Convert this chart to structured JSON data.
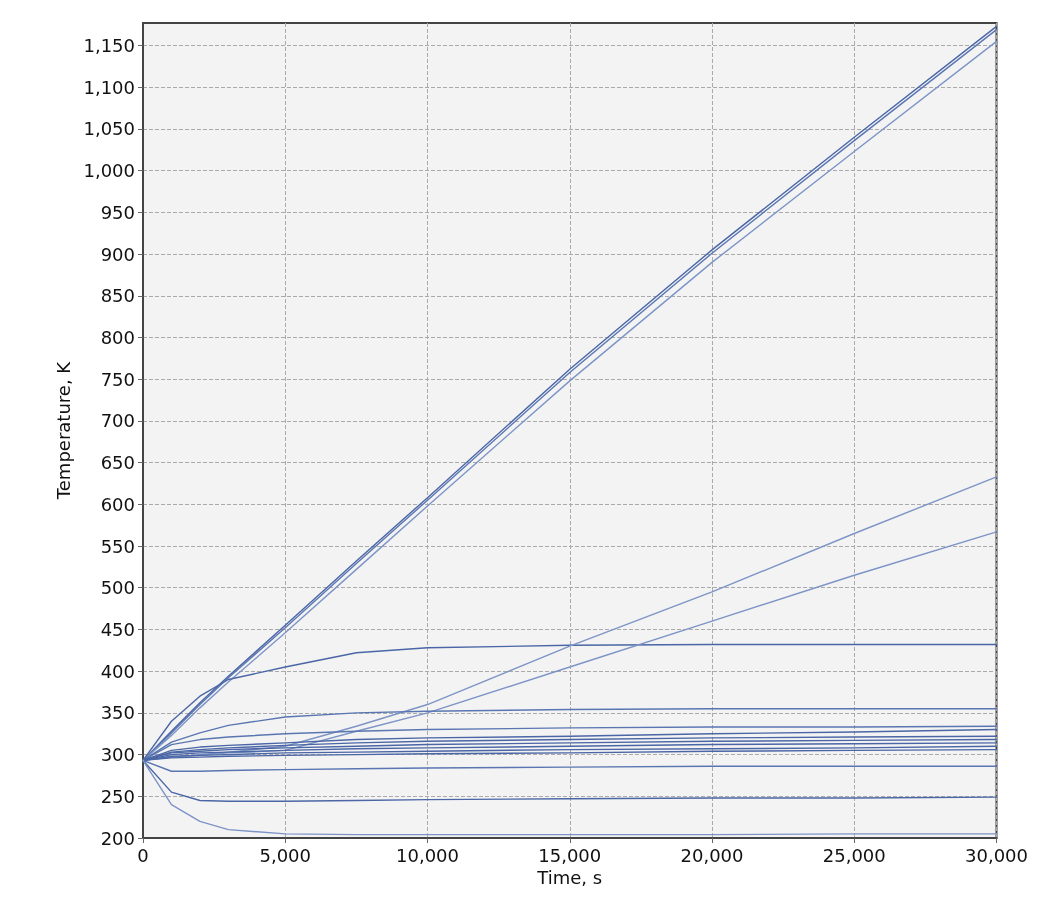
{
  "chart_data": {
    "type": "line",
    "xlabel": "Time, s",
    "ylabel": "Temperature, K",
    "x": [
      0,
      1000,
      2000,
      3000,
      5000,
      7500,
      10000,
      15000,
      20000,
      25000,
      30000
    ],
    "xlim": [
      0,
      30000
    ],
    "xticks": [
      0,
      {
        "value": 5000,
        "label": "5,000"
      },
      {
        "value": 10000,
        "label": "10,000"
      },
      {
        "value": 15000,
        "label": "15,000"
      },
      {
        "value": 20000,
        "label": "20,000"
      },
      {
        "value": 25000,
        "label": "25,000"
      },
      {
        "value": 30000,
        "label": "30,000"
      }
    ],
    "ylim": [
      200,
      1177
    ],
    "yticks": [
      200,
      250,
      300,
      350,
      400,
      450,
      500,
      550,
      600,
      650,
      700,
      750,
      800,
      850,
      900,
      950,
      {
        "value": 1000,
        "label": "1,000"
      },
      {
        "value": 1050,
        "label": "1,050"
      },
      {
        "value": 1100,
        "label": "1,100"
      },
      {
        "value": 1150,
        "label": "1,150"
      }
    ],
    "grid": true,
    "marker": "none",
    "line_style": "solid",
    "series": [
      {
        "color": "#4a66a6",
        "values": [
          293,
          328,
          362,
          394,
          455,
          532,
          608,
          762,
          905,
          1040,
          1173
        ]
      },
      {
        "color": "#5a76b2",
        "values": [
          293,
          326,
          360,
          392,
          452,
          529,
          605,
          758,
          901,
          1036,
          1169
        ]
      },
      {
        "color": "#7d94c6",
        "values": [
          293,
          323,
          356,
          387,
          446,
          522,
          598,
          748,
          890,
          1023,
          1155
        ]
      },
      {
        "color": "#4a66a6",
        "values": [
          293,
          340,
          370,
          390,
          405,
          422,
          428,
          431,
          432,
          432,
          432
        ]
      },
      {
        "color": "#7d94c6",
        "values": [
          293,
          297,
          300,
          303,
          310,
          334,
          360,
          430,
          495,
          565,
          633
        ]
      },
      {
        "color": "#7d94c6",
        "values": [
          293,
          297,
          299,
          302,
          305,
          328,
          350,
          405,
          460,
          515,
          567
        ]
      },
      {
        "color": "#5a76b2",
        "values": [
          293,
          315,
          326,
          335,
          345,
          350,
          352,
          354,
          355,
          355,
          355
        ]
      },
      {
        "color": "#5a76b2",
        "values": [
          293,
          312,
          318,
          321,
          325,
          328,
          330,
          332,
          333,
          333,
          334
        ]
      },
      {
        "color": "#4a66a6",
        "values": [
          293,
          305,
          309,
          311,
          314,
          318,
          320,
          322,
          325,
          327,
          330
        ]
      },
      {
        "color": "#4a66a6",
        "values": [
          293,
          303,
          306,
          308,
          311,
          314,
          316,
          318,
          320,
          321,
          322
        ]
      },
      {
        "color": "#4a66a6",
        "values": [
          293,
          302,
          304,
          306,
          308,
          310,
          312,
          314,
          316,
          317,
          318
        ]
      },
      {
        "color": "#4a66a6",
        "values": [
          293,
          300,
          302,
          303,
          305,
          307,
          308,
          310,
          312,
          313,
          314
        ]
      },
      {
        "color": "#4a66a6",
        "values": [
          293,
          298,
          299,
          300,
          302,
          303,
          304,
          306,
          307,
          308,
          310
        ]
      },
      {
        "color": "#4a66a6",
        "values": [
          293,
          296,
          297,
          298,
          299,
          300,
          301,
          302,
          304,
          305,
          306
        ]
      },
      {
        "color": "#5a76b2",
        "values": [
          293,
          280,
          280,
          281,
          282,
          283,
          284,
          285,
          286,
          286,
          286
        ]
      },
      {
        "color": "#4a66a6",
        "values": [
          293,
          255,
          245,
          244,
          244,
          245,
          246,
          247,
          248,
          248,
          249
        ]
      },
      {
        "color": "#7d94c6",
        "values": [
          293,
          240,
          220,
          210,
          205,
          204,
          204,
          204,
          204,
          205,
          205
        ]
      }
    ]
  }
}
